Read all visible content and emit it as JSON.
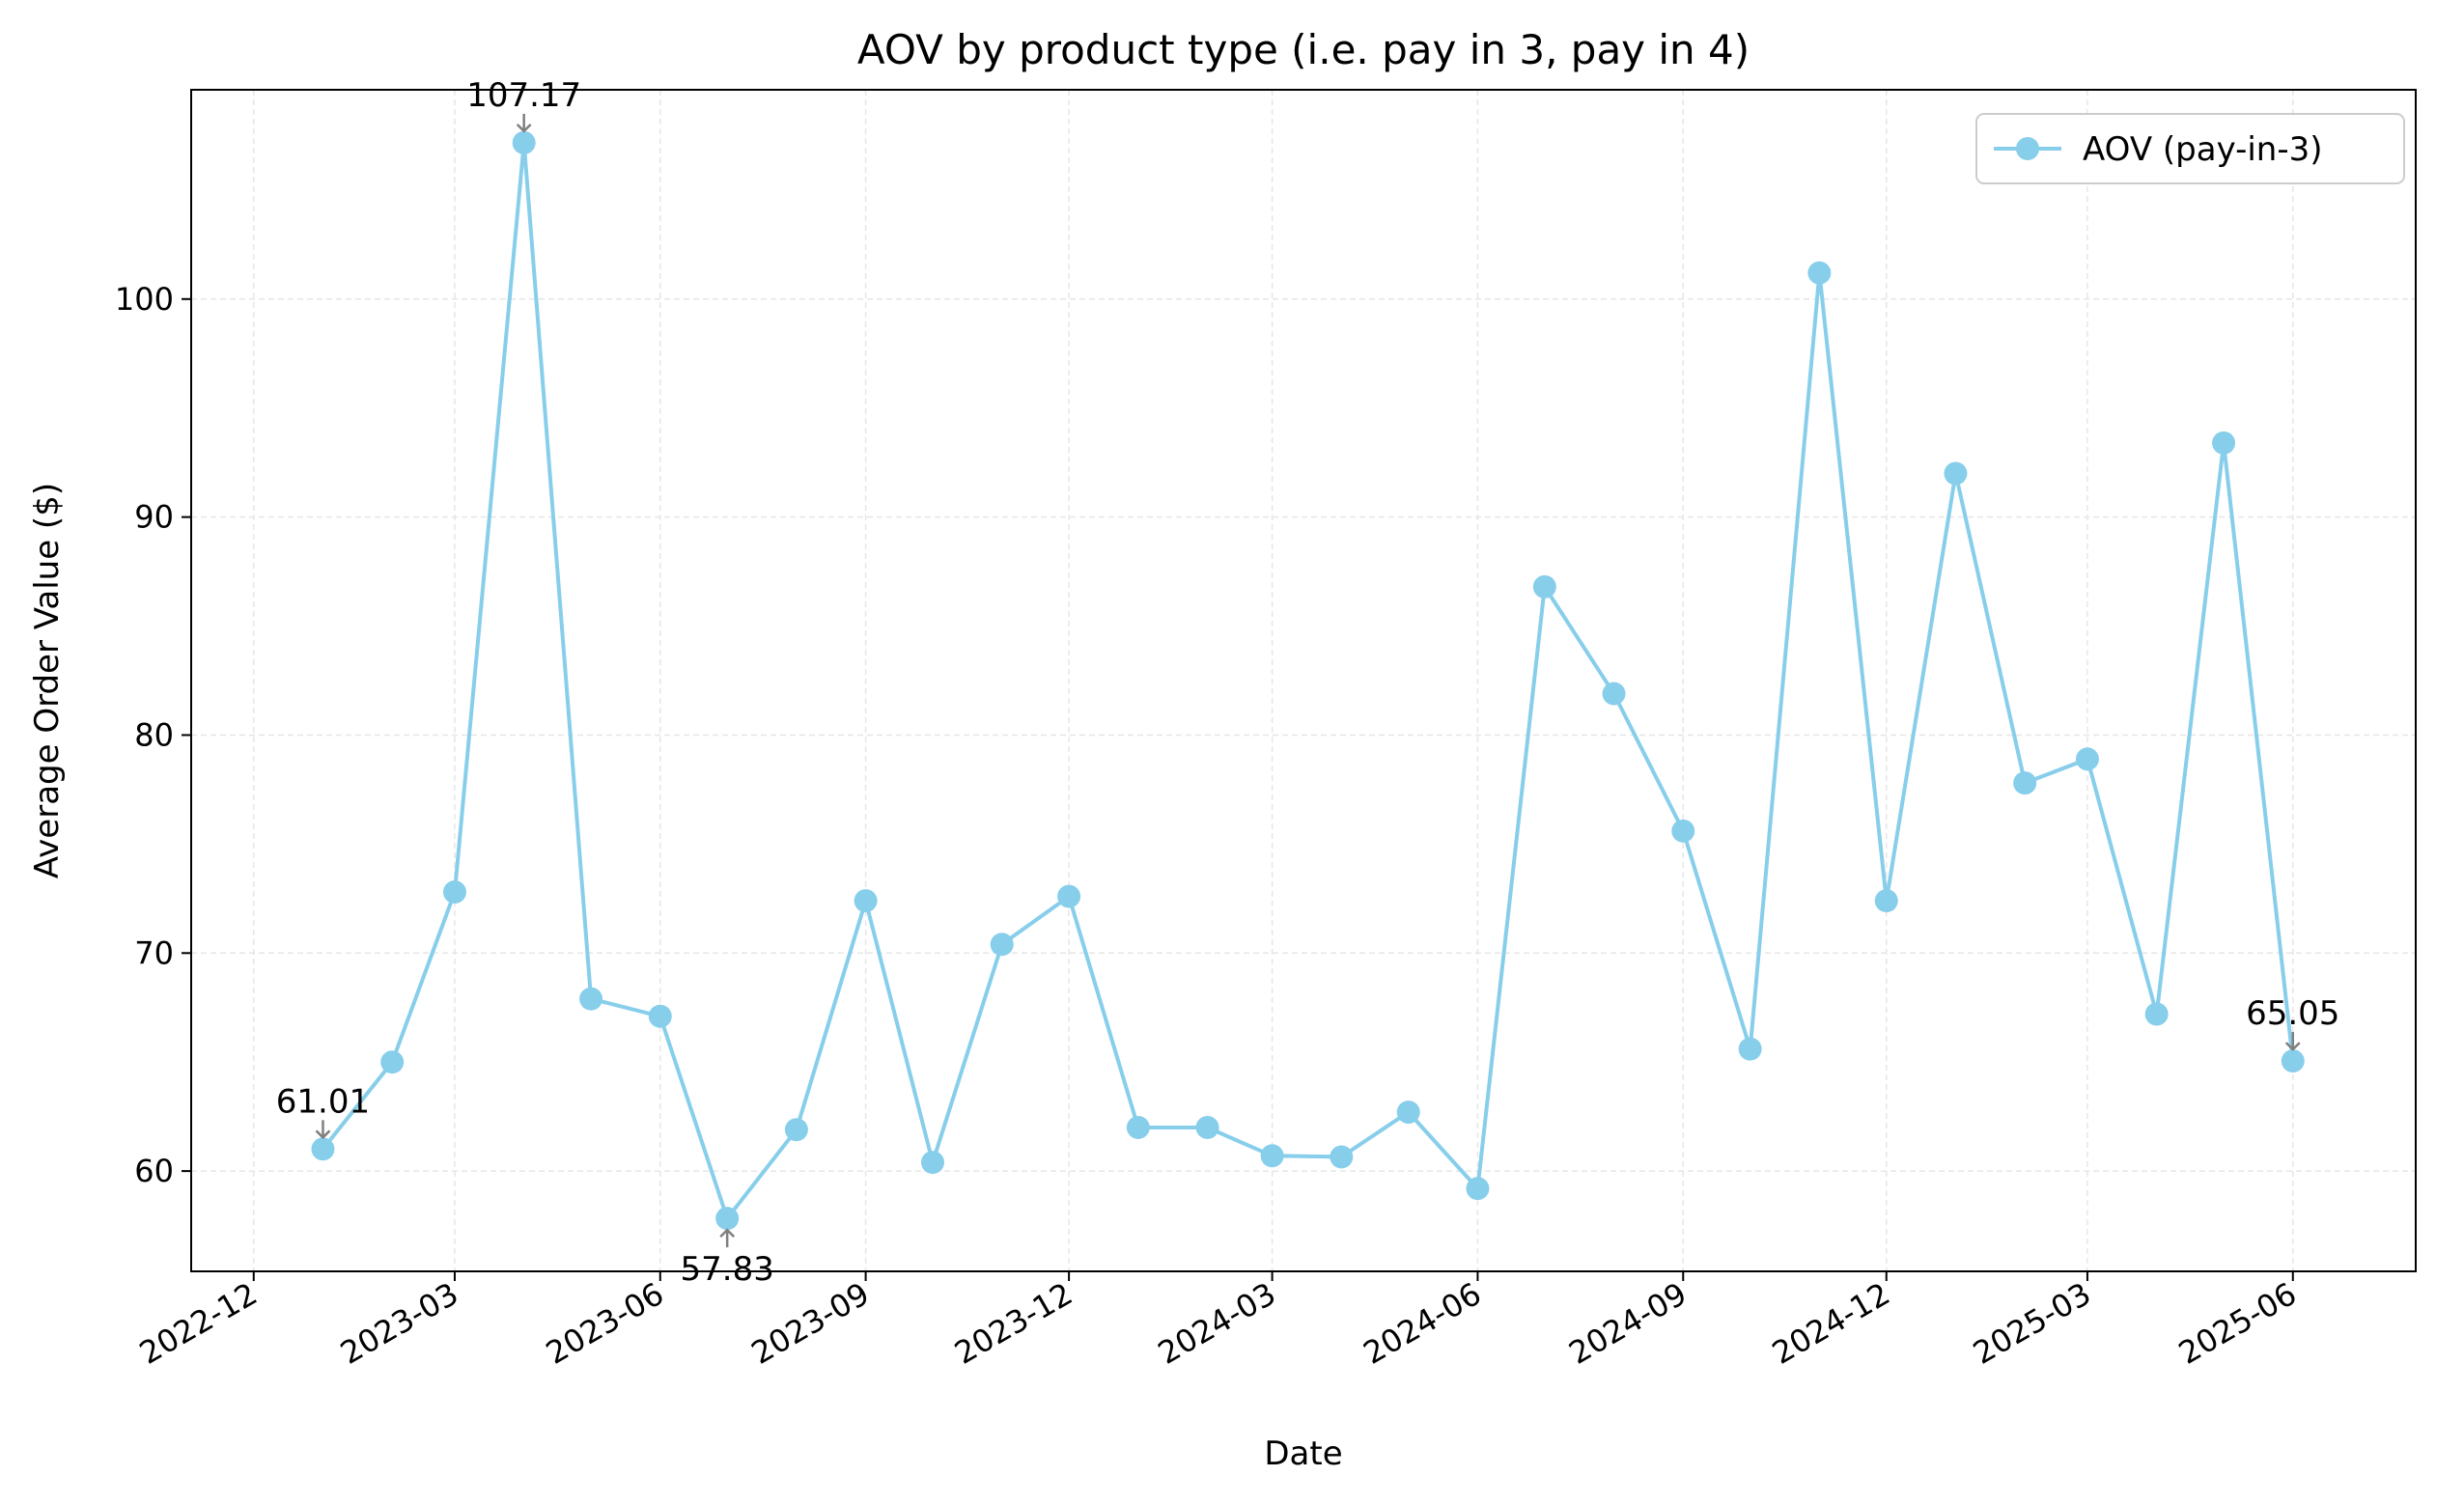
{
  "chart_data": {
    "type": "line",
    "title": "AOV by product type (i.e. pay in 3, pay in 4)",
    "xlabel": "Date",
    "ylabel": "Average Order Value ($)",
    "x_axis": {
      "type": "date",
      "range": [
        "2022-11-03",
        "2025-07-26"
      ],
      "ticks": [
        "2022-12",
        "2023-03",
        "2023-06",
        "2023-09",
        "2023-12",
        "2024-03",
        "2024-06",
        "2024-09",
        "2024-12",
        "2025-03",
        "2025-06"
      ],
      "tick_dates": [
        "2022-12-01",
        "2023-03-01",
        "2023-06-01",
        "2023-09-01",
        "2023-12-01",
        "2024-03-01",
        "2024-06-01",
        "2024-09-01",
        "2024-12-01",
        "2025-03-01",
        "2025-06-01"
      ]
    },
    "y_axis": {
      "range": [
        55.4,
        109.6
      ],
      "ticks": [
        60,
        70,
        80,
        90,
        100
      ]
    },
    "grid": true,
    "legend_position": "top-right",
    "colors": {
      "line": "#87ceeb",
      "grid": "#e6e6e6",
      "annotation_arrow": "#808080"
    },
    "series": [
      {
        "name": "AOV (pay-in-3)",
        "marker": "circle",
        "x": [
          "2023-01-01",
          "2023-02-01",
          "2023-03-01",
          "2023-04-01",
          "2023-05-01",
          "2023-06-01",
          "2023-07-01",
          "2023-08-01",
          "2023-09-01",
          "2023-10-01",
          "2023-11-01",
          "2023-12-01",
          "2024-01-01",
          "2024-02-01",
          "2024-03-01",
          "2024-04-01",
          "2024-05-01",
          "2024-06-01",
          "2024-07-01",
          "2024-08-01",
          "2024-09-01",
          "2024-10-01",
          "2024-11-01",
          "2024-12-01",
          "2025-01-01",
          "2025-02-01",
          "2025-03-01",
          "2025-04-01",
          "2025-05-01",
          "2025-06-01"
        ],
        "values": [
          61.01,
          65.0,
          72.8,
          107.17,
          67.9,
          67.1,
          57.83,
          61.9,
          72.4,
          60.4,
          70.4,
          72.6,
          62.0,
          62.0,
          60.7,
          60.65,
          62.7,
          59.2,
          86.8,
          81.9,
          75.6,
          65.6,
          101.2,
          72.4,
          92.0,
          77.8,
          78.9,
          67.2,
          93.4,
          65.05
        ]
      }
    ],
    "annotations": [
      {
        "x": "2023-01-01",
        "y": 61.01,
        "label": "61.01",
        "position": "above"
      },
      {
        "x": "2023-04-01",
        "y": 107.17,
        "label": "107.17",
        "position": "above"
      },
      {
        "x": "2023-07-01",
        "y": 57.83,
        "label": "57.83",
        "position": "below"
      },
      {
        "x": "2025-06-01",
        "y": 65.05,
        "label": "65.05",
        "position": "above"
      }
    ]
  }
}
